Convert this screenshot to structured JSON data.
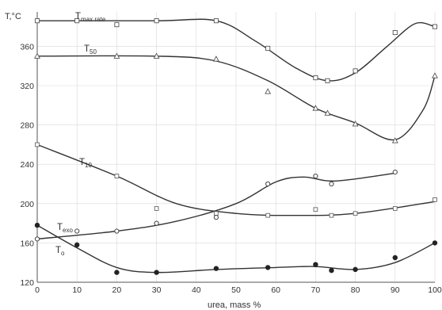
{
  "chart_data": {
    "type": "line",
    "title": "",
    "xlabel": "urea, mass %",
    "ylabel": "T,°C",
    "xlim": [
      0,
      100
    ],
    "ylim": [
      120,
      395
    ],
    "grid": true,
    "x_ticks": [
      0,
      10,
      20,
      30,
      40,
      50,
      60,
      70,
      80,
      90,
      100
    ],
    "y_ticks": [
      120,
      160,
      200,
      240,
      280,
      320,
      360
    ],
    "series": [
      {
        "name": "Tmax rate",
        "marker": "square",
        "points": [
          [
            0,
            386
          ],
          [
            10,
            386
          ],
          [
            20,
            382
          ],
          [
            30,
            386
          ],
          [
            45,
            386
          ],
          [
            58,
            358
          ],
          [
            70,
            328
          ],
          [
            73,
            325
          ],
          [
            80,
            335
          ],
          [
            90,
            374
          ],
          [
            100,
            380
          ]
        ],
        "curve": [
          [
            0,
            386
          ],
          [
            30,
            386
          ],
          [
            45,
            386
          ],
          [
            55,
            365
          ],
          [
            65,
            338
          ],
          [
            73,
            325
          ],
          [
            80,
            333
          ],
          [
            88,
            360
          ],
          [
            95,
            383
          ],
          [
            100,
            380
          ]
        ]
      },
      {
        "name": "T50",
        "marker": "triangle",
        "points": [
          [
            0,
            350
          ],
          [
            20,
            350
          ],
          [
            30,
            350
          ],
          [
            45,
            347
          ],
          [
            58,
            314
          ],
          [
            70,
            297
          ],
          [
            73,
            292
          ],
          [
            80,
            281
          ],
          [
            90,
            264
          ],
          [
            100,
            330
          ]
        ],
        "curve": [
          [
            0,
            350
          ],
          [
            30,
            350
          ],
          [
            45,
            345
          ],
          [
            58,
            325
          ],
          [
            70,
            297
          ],
          [
            80,
            282
          ],
          [
            90,
            265
          ],
          [
            97,
            295
          ],
          [
            100,
            330
          ]
        ]
      },
      {
        "name": "T10",
        "marker": "open-square",
        "points": [
          [
            0,
            260
          ],
          [
            20,
            228
          ],
          [
            30,
            195
          ],
          [
            45,
            190
          ],
          [
            58,
            188
          ],
          [
            70,
            194
          ],
          [
            74,
            188
          ],
          [
            80,
            190
          ],
          [
            90,
            195
          ],
          [
            100,
            204
          ]
        ],
        "curve": [
          [
            0,
            260
          ],
          [
            20,
            228
          ],
          [
            35,
            200
          ],
          [
            50,
            190
          ],
          [
            65,
            188
          ],
          [
            80,
            190
          ],
          [
            100,
            202
          ]
        ]
      },
      {
        "name": "Texo",
        "marker": "open-circle",
        "points": [
          [
            0,
            164
          ],
          [
            10,
            172
          ],
          [
            20,
            172
          ],
          [
            30,
            180
          ],
          [
            45,
            186
          ],
          [
            58,
            220
          ],
          [
            70,
            228
          ],
          [
            74,
            220
          ],
          [
            90,
            232
          ]
        ],
        "curve": [
          [
            0,
            164
          ],
          [
            20,
            172
          ],
          [
            35,
            182
          ],
          [
            50,
            200
          ],
          [
            60,
            222
          ],
          [
            67,
            227
          ],
          [
            75,
            223
          ],
          [
            90,
            231
          ]
        ]
      },
      {
        "name": "To",
        "marker": "filled-circle",
        "points": [
          [
            0,
            178
          ],
          [
            10,
            158
          ],
          [
            20,
            130
          ],
          [
            30,
            130
          ],
          [
            45,
            134
          ],
          [
            58,
            135
          ],
          [
            70,
            138
          ],
          [
            74,
            132
          ],
          [
            80,
            133
          ],
          [
            90,
            145
          ],
          [
            100,
            160
          ]
        ],
        "curve": [
          [
            0,
            178
          ],
          [
            10,
            155
          ],
          [
            20,
            135
          ],
          [
            30,
            130
          ],
          [
            45,
            133
          ],
          [
            60,
            135
          ],
          [
            70,
            136
          ],
          [
            80,
            133
          ],
          [
            90,
            140
          ],
          [
            100,
            160
          ]
        ]
      }
    ],
    "series_labels": [
      {
        "main": "T",
        "sub": "max rate"
      },
      {
        "main": "T",
        "sub": "50"
      },
      {
        "main": "T",
        "sub": "10"
      },
      {
        "main": "T",
        "sub": "exo"
      },
      {
        "main": "T",
        "sub": "o"
      }
    ]
  }
}
